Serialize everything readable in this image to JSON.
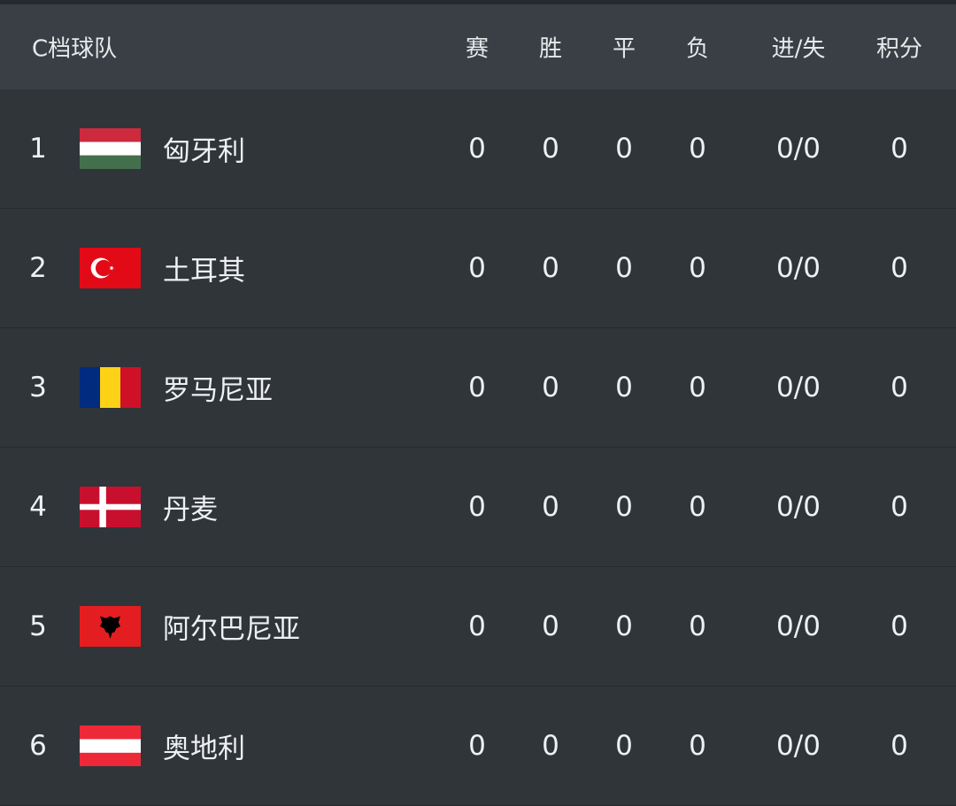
{
  "header": {
    "team_label": "C档球队",
    "columns": [
      "赛",
      "胜",
      "平",
      "负",
      "进/失",
      "积分"
    ]
  },
  "rows": [
    {
      "rank": "1",
      "team": "匈牙利",
      "flag": "hungary-flag",
      "played": "0",
      "won": "0",
      "drawn": "0",
      "lost": "0",
      "goals": "0/0",
      "points": "0"
    },
    {
      "rank": "2",
      "team": "土耳其",
      "flag": "turkey-flag",
      "played": "0",
      "won": "0",
      "drawn": "0",
      "lost": "0",
      "goals": "0/0",
      "points": "0"
    },
    {
      "rank": "3",
      "team": "罗马尼亚",
      "flag": "romania-flag",
      "played": "0",
      "won": "0",
      "drawn": "0",
      "lost": "0",
      "goals": "0/0",
      "points": "0"
    },
    {
      "rank": "4",
      "team": "丹麦",
      "flag": "denmark-flag",
      "played": "0",
      "won": "0",
      "drawn": "0",
      "lost": "0",
      "goals": "0/0",
      "points": "0"
    },
    {
      "rank": "5",
      "team": "阿尔巴尼亚",
      "flag": "albania-flag",
      "played": "0",
      "won": "0",
      "drawn": "0",
      "lost": "0",
      "goals": "0/0",
      "points": "0"
    },
    {
      "rank": "6",
      "team": "奥地利",
      "flag": "austria-flag",
      "played": "0",
      "won": "0",
      "drawn": "0",
      "lost": "0",
      "goals": "0/0",
      "points": "0"
    }
  ],
  "colors": {
    "background": "#30353a",
    "header": "#3a3f45",
    "text": "#eef0f2"
  }
}
